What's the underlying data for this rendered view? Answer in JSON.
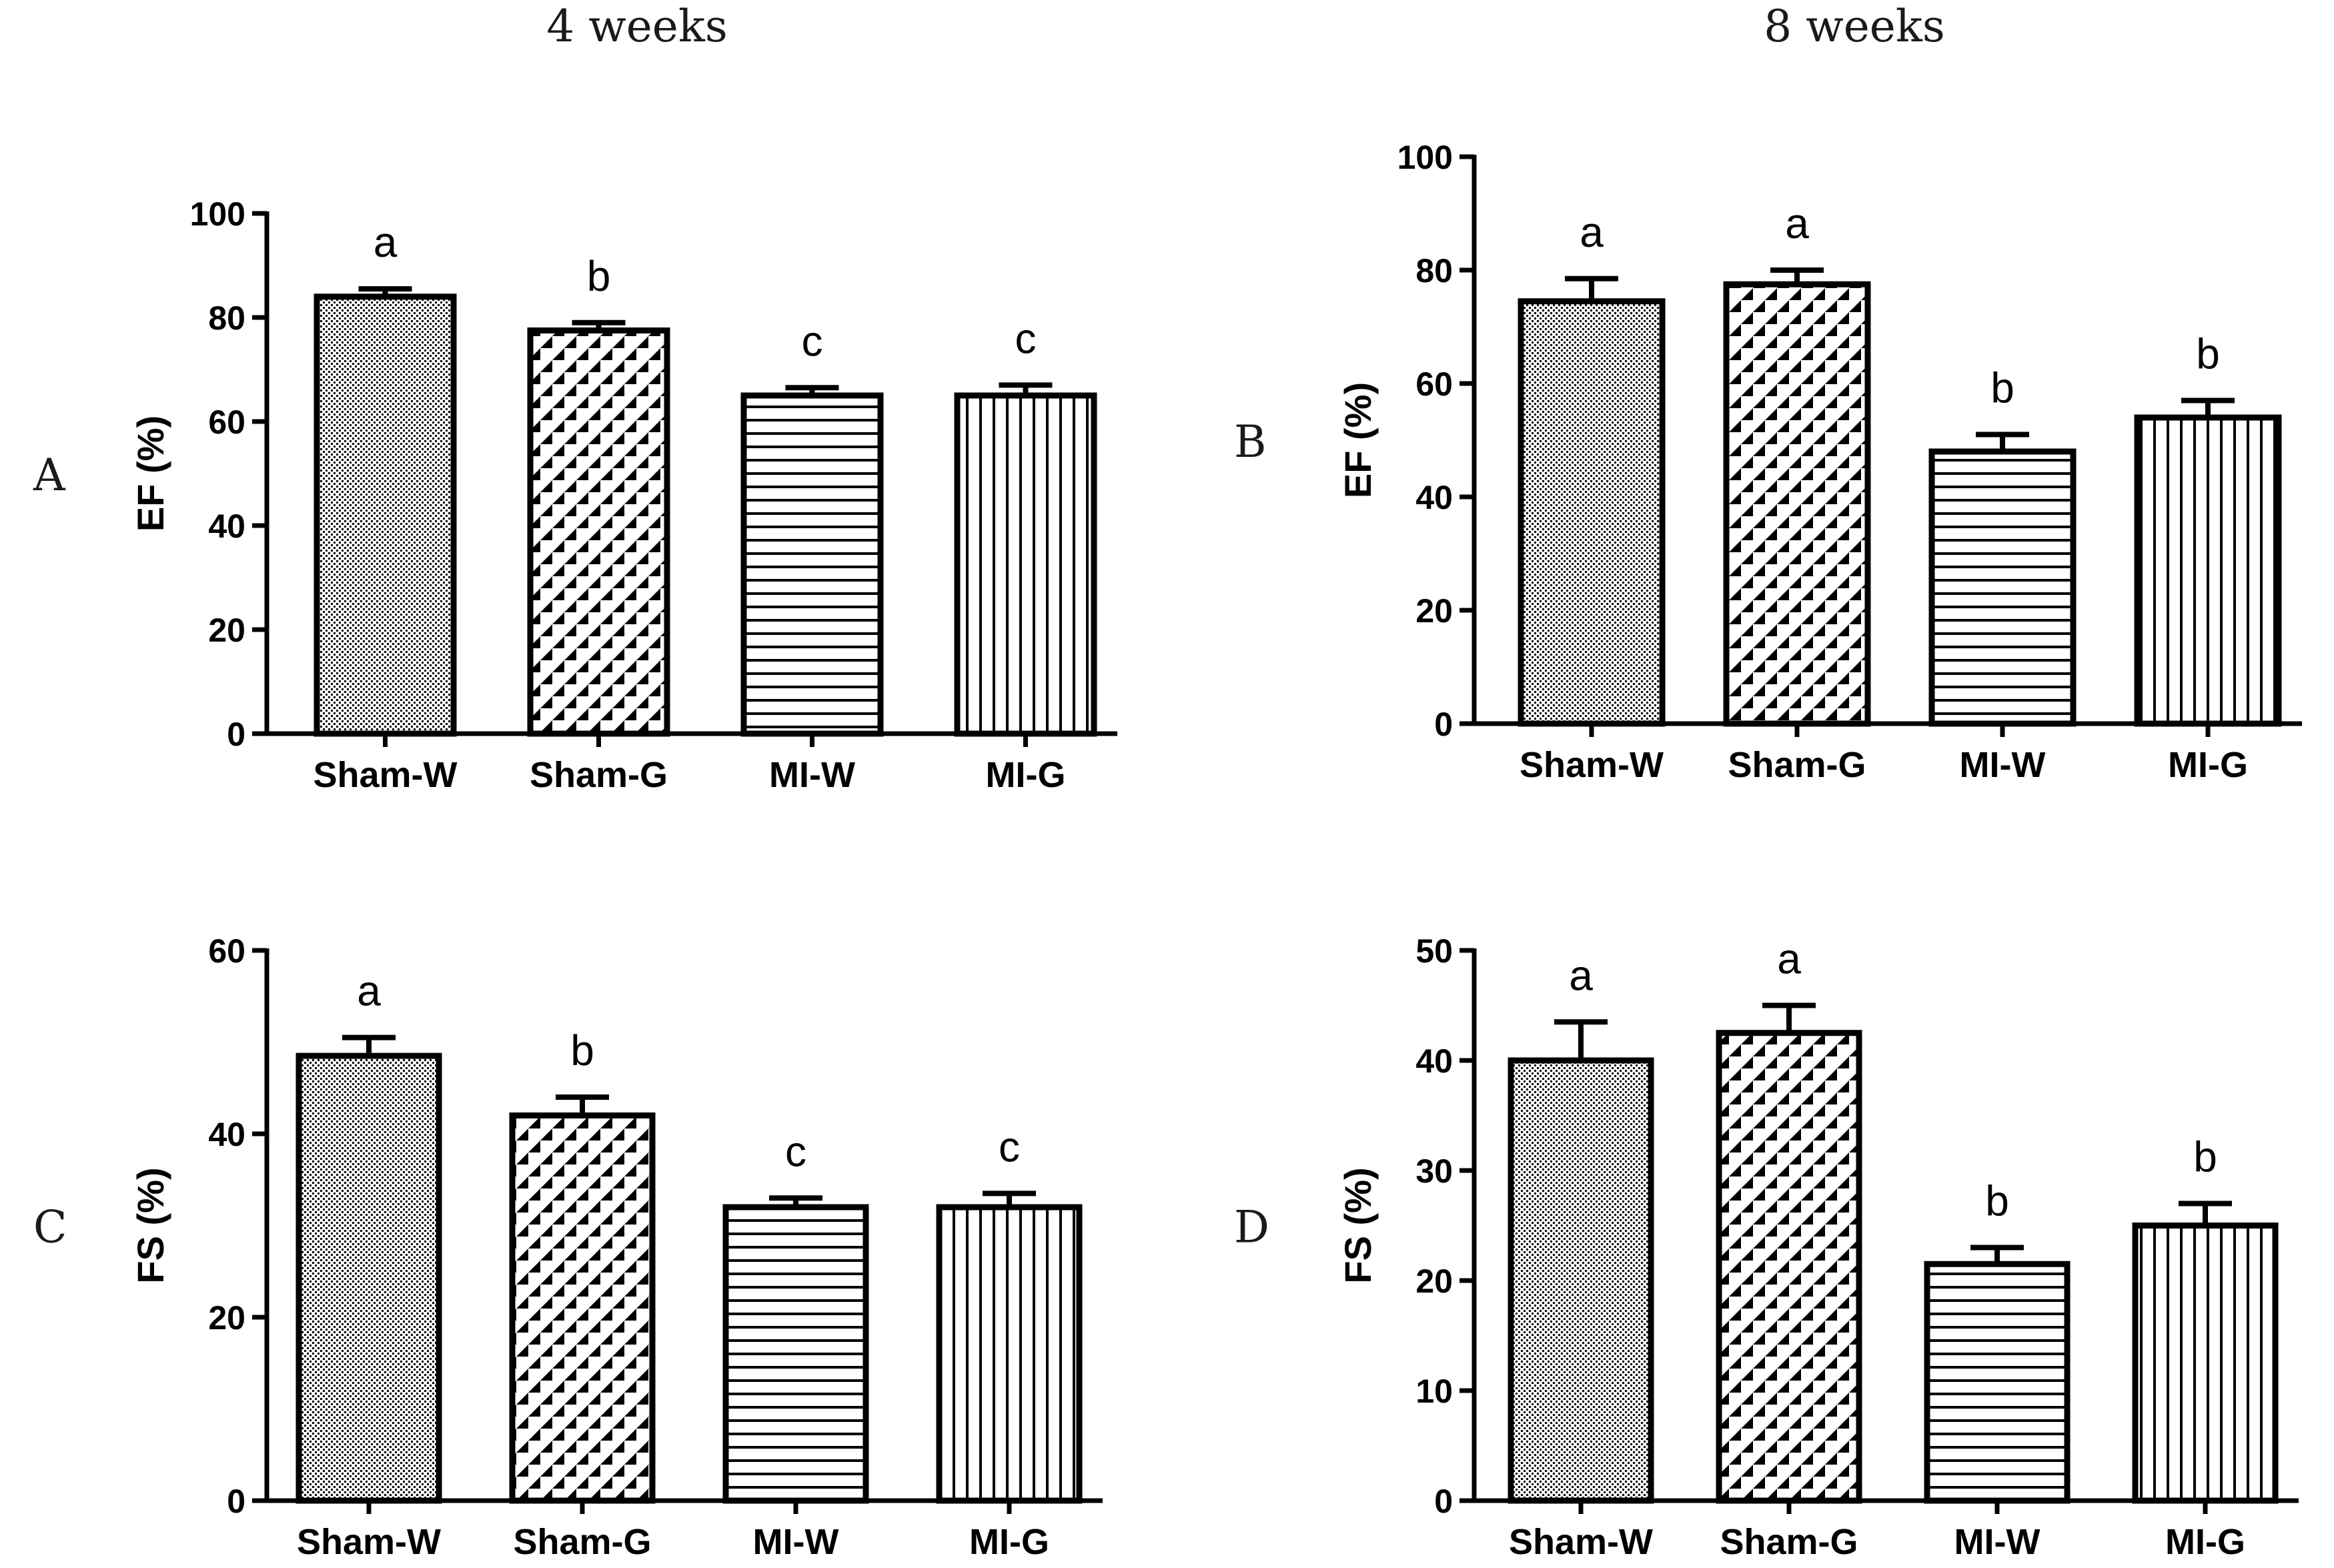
{
  "column_titles": [
    "4 weeks",
    "8 weeks"
  ],
  "chart_data": [
    {
      "panel": "A",
      "type": "bar",
      "title": "4 weeks",
      "ylabel": "EF (%)",
      "xlabel": "",
      "ylim": [
        0,
        100
      ],
      "yticks": [
        0,
        20,
        40,
        60,
        80,
        100
      ],
      "categories": [
        "Sham-W",
        "Sham-G",
        "MI-W",
        "MI-G"
      ],
      "values": [
        84,
        77.5,
        65,
        65
      ],
      "errors": [
        1.5,
        1.5,
        1.5,
        2
      ],
      "significance": [
        "a",
        "b",
        "c",
        "c"
      ],
      "patterns": [
        "dots",
        "checker",
        "hlines",
        "vlines"
      ]
    },
    {
      "panel": "B",
      "type": "bar",
      "title": "8 weeks",
      "ylabel": "EF (%)",
      "xlabel": "",
      "ylim": [
        0,
        100
      ],
      "yticks": [
        0,
        20,
        40,
        60,
        80,
        100
      ],
      "categories": [
        "Sham-W",
        "Sham-G",
        "MI-W",
        "MI-G"
      ],
      "values": [
        74.5,
        77.5,
        48,
        54
      ],
      "errors": [
        4,
        2.5,
        3,
        3
      ],
      "significance": [
        "a",
        "a",
        "b",
        "b"
      ],
      "patterns": [
        "dots",
        "checker",
        "hlines",
        "vlines"
      ]
    },
    {
      "panel": "C",
      "type": "bar",
      "title": "4 weeks",
      "ylabel": "FS (%)",
      "xlabel": "",
      "ylim": [
        0,
        60
      ],
      "yticks": [
        0,
        20,
        40,
        60
      ],
      "categories": [
        "Sham-W",
        "Sham-G",
        "MI-W",
        "MI-G"
      ],
      "values": [
        48.5,
        42,
        32,
        32
      ],
      "errors": [
        2,
        2,
        1,
        1.5
      ],
      "significance": [
        "a",
        "b",
        "c",
        "c"
      ],
      "patterns": [
        "dots",
        "checker",
        "hlines",
        "vlines"
      ]
    },
    {
      "panel": "D",
      "type": "bar",
      "title": "8 weeks",
      "ylabel": "FS (%)",
      "xlabel": "",
      "ylim": [
        0,
        50
      ],
      "yticks": [
        0,
        10,
        20,
        30,
        40,
        50
      ],
      "categories": [
        "Sham-W",
        "Sham-G",
        "MI-W",
        "MI-G"
      ],
      "values": [
        40,
        42.5,
        21.5,
        25
      ],
      "errors": [
        3.5,
        2.5,
        1.5,
        2
      ],
      "significance": [
        "a",
        "a",
        "b",
        "b"
      ],
      "patterns": [
        "dots",
        "checker",
        "hlines",
        "vlines"
      ]
    }
  ]
}
